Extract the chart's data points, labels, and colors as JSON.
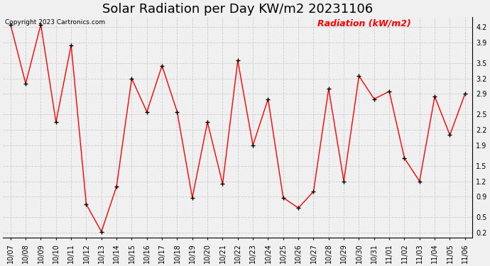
{
  "title": "Solar Radiation per Day KW/m2 20231106",
  "copyright_text": "Copyright 2023 Cartronics.com",
  "legend_label": "Radiation (kW/m2)",
  "dates": [
    "10/07",
    "10/08",
    "10/09",
    "10/10",
    "10/11",
    "10/12",
    "10/13",
    "10/14",
    "10/15",
    "10/16",
    "10/17",
    "10/18",
    "10/19",
    "10/20",
    "10/21",
    "10/22",
    "10/23",
    "10/24",
    "10/25",
    "10/26",
    "10/27",
    "10/28",
    "10/29",
    "10/30",
    "10/31",
    "11/01",
    "11/02",
    "11/03",
    "11/04",
    "11/05",
    "11/06"
  ],
  "values": [
    4.25,
    3.1,
    4.25,
    2.35,
    3.85,
    0.75,
    0.22,
    1.1,
    3.2,
    2.55,
    3.45,
    2.55,
    0.88,
    2.35,
    1.15,
    3.55,
    1.9,
    2.8,
    0.88,
    0.68,
    1.0,
    3.0,
    1.2,
    3.25,
    2.8,
    2.95,
    1.65,
    1.2,
    2.85,
    2.1,
    2.9
  ],
  "line_color": "red",
  "marker": "+",
  "marker_color": "black",
  "ylim": [
    0.1,
    4.4
  ],
  "yticks": [
    0.2,
    0.5,
    0.9,
    1.2,
    1.5,
    1.9,
    2.2,
    2.5,
    2.9,
    3.2,
    3.5,
    3.9,
    4.2
  ],
  "title_fontsize": 13,
  "bg_color": "#f0f0f0",
  "grid_color": "#cccccc",
  "legend_color": "red",
  "copyright_color": "black",
  "copyright_fontsize": 6.5,
  "legend_fontsize": 9,
  "tick_fontsize": 7,
  "ytick_fontsize": 7,
  "marker_size": 4,
  "linewidth": 1.0
}
